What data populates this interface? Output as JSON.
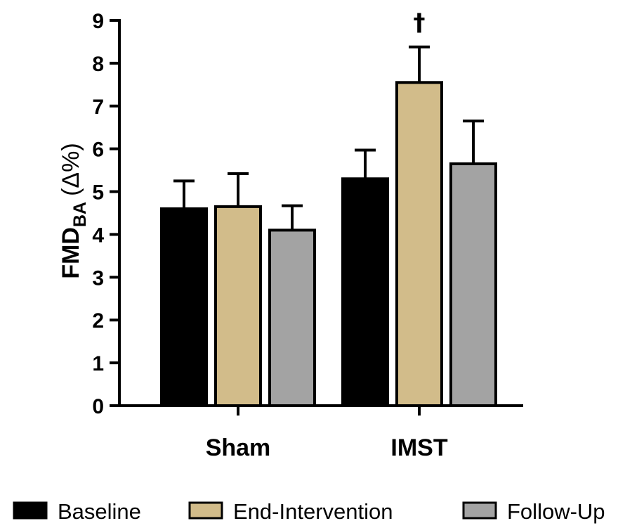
{
  "chart_data": {
    "type": "bar",
    "categories": [
      "Sham",
      "IMST"
    ],
    "series": [
      {
        "name": "Baseline",
        "color": "#000000",
        "values": [
          4.6,
          5.3
        ],
        "errors": [
          0.65,
          0.67
        ]
      },
      {
        "name": "End-Intervention",
        "color": "#d2bc8a",
        "values": [
          4.65,
          7.55
        ],
        "errors": [
          0.77,
          0.83
        ]
      },
      {
        "name": "Follow-Up",
        "color": "#a3a3a3",
        "values": [
          4.1,
          5.65
        ],
        "errors": [
          0.57,
          1.0
        ]
      }
    ],
    "ylabel": {
      "main": "FMD",
      "subscript": "BA",
      "unit": "(Δ%)"
    },
    "ylim": [
      0,
      9
    ],
    "yticks": [
      "0",
      "1",
      "2",
      "3",
      "4",
      "5",
      "6",
      "7",
      "8",
      "9"
    ],
    "annotations": [
      {
        "text": "†",
        "category": "IMST",
        "series": "End-Intervention"
      }
    ],
    "legend_position": "bottom",
    "grid": false
  }
}
